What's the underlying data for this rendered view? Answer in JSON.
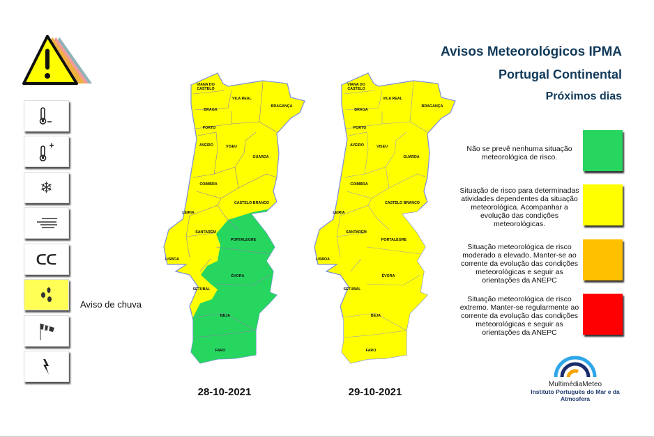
{
  "header": {
    "title": "Avisos Meteorológicos IPMA",
    "subtitle": "Portugal Continental",
    "period": "Próximos dias"
  },
  "sidebar": {
    "buttons": [
      {
        "icon": "thermometer-minus-icon",
        "active": false
      },
      {
        "icon": "thermometer-plus-icon",
        "active": false
      },
      {
        "icon": "snow-icon",
        "active": false
      },
      {
        "icon": "fog-icon",
        "active": false
      },
      {
        "icon": "waves-icon",
        "active": false
      },
      {
        "icon": "rain-drops-icon",
        "active": true
      },
      {
        "icon": "windsock-icon",
        "active": false
      },
      {
        "icon": "lightning-icon",
        "active": false
      }
    ],
    "active_label": "Aviso de chuva"
  },
  "districts": {
    "viana1": "VIANA DO",
    "viana2": "CASTELO",
    "vila_real": "VILA REAL",
    "braganca": "BRAGANÇA",
    "braga": "BRAGA",
    "porto": "PORTO",
    "aveiro": "AVEIRO",
    "viseu": "VISEU",
    "guarda": "GUARDA",
    "coimbra": "COIMBRA",
    "castelo_branco": "CASTELO BRANCO",
    "leiria": "LEIRIA",
    "santarem": "SANTARÉM",
    "portalegre": "PORTALEGRE",
    "lisboa": "LISBOA",
    "evora": "ÉVORA",
    "setubal": "SETÚBAL",
    "beja": "BEJA",
    "faro": "FARO"
  },
  "maps": [
    {
      "date": "28-10-2021",
      "north_level": "yellow",
      "south_level": "green",
      "green_districts": [
        "Portalegre",
        "Évora",
        "Beja",
        "Faro"
      ]
    },
    {
      "date": "29-10-2021",
      "north_level": "yellow",
      "south_level": "yellow",
      "green_districts": []
    }
  ],
  "legend": [
    {
      "color": "#27d65f",
      "text": "Não se prevê nenhuma situação meteorológica de risco."
    },
    {
      "color": "#ffff00",
      "text": "Situação de risco para determinadas atividades dependentes da situação meteorológica. Acompanhar a evolução das condições meteorológicas."
    },
    {
      "color": "#ffc000",
      "text": "Situação meteorológica de risco moderado a elevado. Manter-se ao corrente da evolução das condições meteorológicas e seguir as orientações da ANEPC"
    },
    {
      "color": "#ff0000",
      "text": "Situação meteorológica de risco extremo. Manter-se regularmente ao corrente da evolução das condições meteorológicas e seguir as orientações da ANEPC"
    }
  ],
  "logo": {
    "name": "MultimédiaMeteo",
    "org": "Instituto Português do Mar e da Atmosfera"
  }
}
